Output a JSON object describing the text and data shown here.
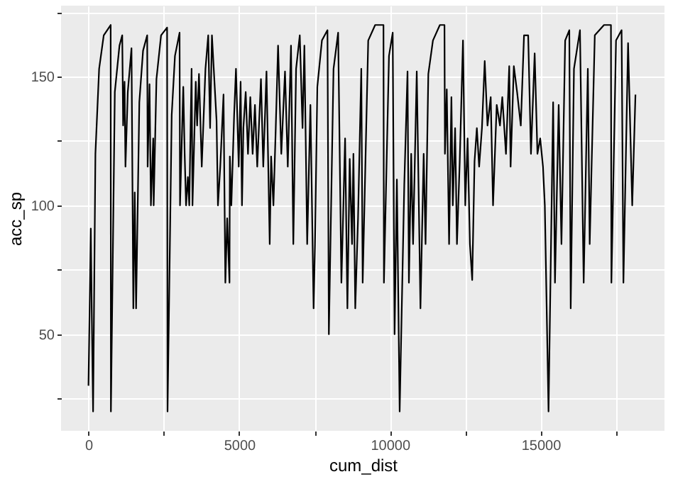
{
  "chart_data": {
    "type": "line",
    "xlabel": "cum_dist",
    "ylabel": "acc_sp",
    "grid": true,
    "line_style": "solid",
    "marker": "none",
    "xlim": [
      -910,
      19110
    ],
    "ylim": [
      12.5,
      177.5
    ],
    "xticks": [
      0,
      {
        "value": 2500,
        "label": null
      },
      5000,
      {
        "value": 7500,
        "label": null
      },
      10000,
      {
        "value": 12500,
        "label": null
      },
      15000,
      {
        "value": 17500,
        "label": null
      }
    ],
    "yticks": [
      {
        "value": 25,
        "label": null
      },
      50,
      {
        "value": 75,
        "label": null
      },
      100,
      {
        "value": 125,
        "label": null
      },
      150,
      {
        "value": 175,
        "label": null
      }
    ],
    "series": [
      {
        "color": "#000000",
        "x": [
          0,
          77,
          107,
          153,
          230,
          353,
          506,
          736,
          744,
          874,
          1028,
          1120,
          1150,
          1196,
          1227,
          1304,
          1427,
          1488,
          1534,
          1580,
          1687,
          1810,
          1948,
          1963,
          2025,
          2071,
          2148,
          2163,
          2255,
          2408,
          2608,
          2623,
          2761,
          2869,
          3022,
          3037,
          3145,
          3191,
          3237,
          3298,
          3344,
          3421,
          3451,
          3559,
          3605,
          3666,
          3758,
          3881,
          3973,
          4035,
          4096,
          4249,
          4295,
          4372,
          4480,
          4541,
          4602,
          4679,
          4690,
          4740,
          4832,
          4893,
          4985,
          5047,
          5093,
          5139,
          5216,
          5292,
          5369,
          5446,
          5523,
          5599,
          5722,
          5799,
          5906,
          6013,
          6059,
          6136,
          6213,
          6290,
          6397,
          6520,
          6612,
          6719,
          6796,
          6888,
          7010,
          7102,
          7163,
          7256,
          7363,
          7469,
          7515,
          7592,
          7745,
          7929,
          7975,
          8130,
          8283,
          8391,
          8514,
          8590,
          8667,
          8744,
          8790,
          8851,
          8943,
          9051,
          9097,
          9281,
          9511,
          9787,
          9802,
          9970,
          10093,
          10155,
          10232,
          10324,
          10477,
          10585,
          10631,
          10707,
          10769,
          10891,
          11014,
          11121,
          11183,
          11275,
          11428,
          11658,
          11811,
          11826,
          11887,
          11964,
          12041,
          12087,
          12164,
          12225,
          12317,
          12425,
          12501,
          12578,
          12655,
          12731,
          12808,
          12885,
          12961,
          13054,
          13146,
          13238,
          13345,
          13422,
          13544,
          13652,
          13729,
          13851,
          13959,
          14005,
          14112,
          14220,
          14343,
          14450,
          14588,
          14680,
          14803,
          14895,
          14987,
          15079,
          15140,
          15263,
          15416,
          15477,
          15600,
          15692,
          15815,
          15953,
          15999,
          16107,
          16306,
          16429,
          16567,
          16629,
          16798,
          17104,
          17334,
          17349,
          17503,
          17687,
          17748,
          17902,
          18040,
          18147
        ],
        "values": [
          30,
          91,
          60,
          20,
          120,
          153,
          166,
          170,
          20,
          144,
          162,
          166,
          131,
          148,
          115,
          144,
          161,
          60,
          105,
          60,
          140,
          160,
          166,
          115,
          147,
          100,
          126,
          100,
          149,
          166,
          169,
          20,
          135,
          158,
          167,
          100,
          146,
          120,
          100,
          111,
          100,
          153,
          100,
          148,
          131,
          151,
          115,
          153,
          166,
          130,
          166,
          133,
          100,
          115,
          143,
          70,
          95,
          70,
          119,
          100,
          135,
          153,
          115,
          148,
          100,
          130,
          144,
          120,
          142,
          120,
          139,
          115,
          149,
          115,
          152,
          85,
          119,
          100,
          130,
          162,
          120,
          152,
          115,
          162,
          85,
          153,
          166,
          130,
          162,
          85,
          139,
          60,
          85,
          146,
          164,
          168,
          50,
          153,
          167,
          70,
          126,
          60,
          118,
          85,
          120,
          60,
          95,
          153,
          70,
          164,
          170,
          170,
          70,
          158,
          167,
          50,
          110,
          20,
          108,
          152,
          70,
          120,
          85,
          152,
          60,
          120,
          85,
          151,
          164,
          170,
          170,
          120,
          145,
          85,
          142,
          100,
          130,
          85,
          117,
          164,
          100,
          126,
          85,
          71,
          117,
          130,
          115,
          130,
          156,
          131,
          142,
          100,
          139,
          131,
          142,
          120,
          154,
          115,
          154,
          144,
          131,
          166,
          166,
          120,
          159,
          120,
          126,
          115,
          100,
          20,
          140,
          70,
          139,
          85,
          164,
          168,
          60,
          153,
          168,
          70,
          153,
          85,
          166,
          170,
          170,
          70,
          164,
          168,
          70,
          163,
          100,
          143
        ]
      }
    ]
  }
}
